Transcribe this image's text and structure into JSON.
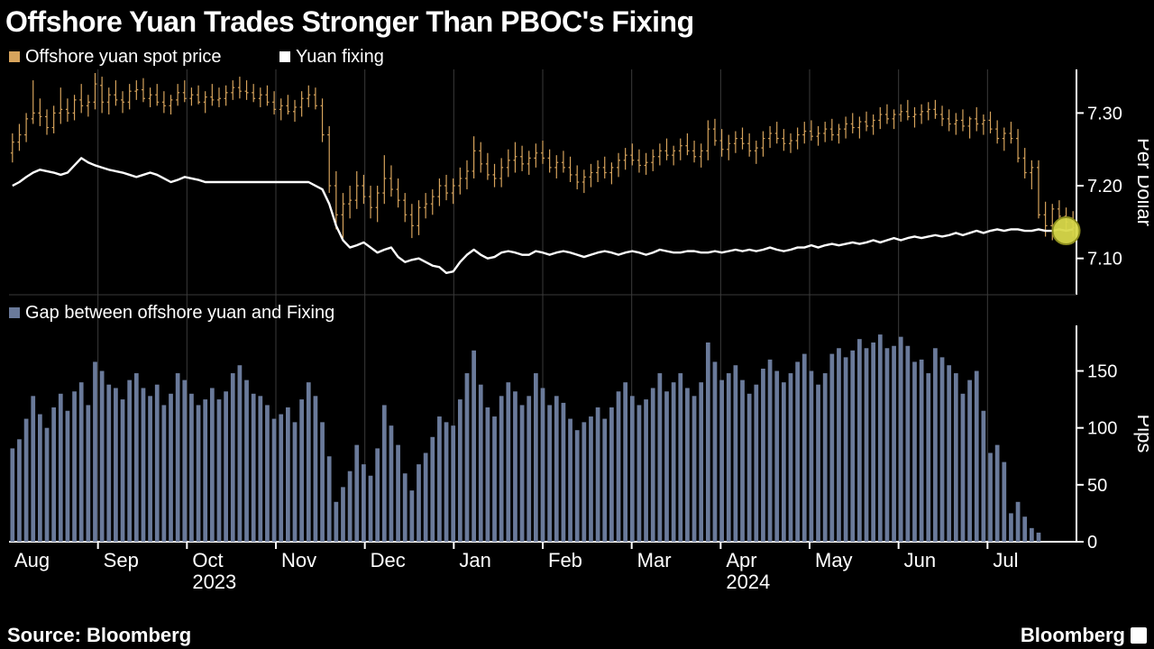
{
  "title": "Offshore Yuan Trades Stronger Than PBOC's Fixing",
  "source_label": "Source: Bloomberg",
  "brand": "Bloomberg",
  "colors": {
    "background": "#000000",
    "text": "#ffffff",
    "ohlc": "#d6a35c",
    "fixing_line": "#ffffff",
    "bars": "#6a7a9a",
    "grid": "#3a3a3a",
    "axis": "#ffffff",
    "panel_fill": "#050505",
    "highlight_marker_fill": "#d8d84a",
    "highlight_marker_stroke": "#8c8c1f"
  },
  "legend_top": [
    {
      "label": "Offshore yuan spot price",
      "swatch": "#d6a35c"
    },
    {
      "label": "Yuan fixing",
      "swatch": "#ffffff"
    }
  ],
  "legend_bottom": [
    {
      "label": "Gap between offshore yuan and Fixing",
      "swatch": "#6a7a9a"
    }
  ],
  "x_axis": {
    "months": [
      "Aug",
      "Sep",
      "Oct",
      "Nov",
      "Dec",
      "Jan",
      "Feb",
      "Mar",
      "Apr",
      "May",
      "Jun",
      "Jul"
    ],
    "year_under": {
      "2023": "Oct",
      "2024": "Apr"
    }
  },
  "top_panel": {
    "type": "ohlc+line",
    "ylabel": "Per Dollar",
    "ylim": [
      7.05,
      7.36
    ],
    "yticks": [
      7.1,
      7.2,
      7.3
    ],
    "label_fontsize": 20,
    "ohlc": [
      {
        "o": 7.245,
        "h": 7.272,
        "l": 7.232,
        "c": 7.26
      },
      {
        "o": 7.26,
        "h": 7.285,
        "l": 7.248,
        "c": 7.27
      },
      {
        "o": 7.27,
        "h": 7.3,
        "l": 7.26,
        "c": 7.292
      },
      {
        "o": 7.292,
        "h": 7.345,
        "l": 7.285,
        "c": 7.3
      },
      {
        "o": 7.3,
        "h": 7.32,
        "l": 7.282,
        "c": 7.295
      },
      {
        "o": 7.295,
        "h": 7.305,
        "l": 7.27,
        "c": 7.28
      },
      {
        "o": 7.28,
        "h": 7.31,
        "l": 7.272,
        "c": 7.3
      },
      {
        "o": 7.3,
        "h": 7.335,
        "l": 7.285,
        "c": 7.305
      },
      {
        "o": 7.305,
        "h": 7.32,
        "l": 7.288,
        "c": 7.3
      },
      {
        "o": 7.3,
        "h": 7.325,
        "l": 7.29,
        "c": 7.318
      },
      {
        "o": 7.318,
        "h": 7.34,
        "l": 7.3,
        "c": 7.31
      },
      {
        "o": 7.31,
        "h": 7.325,
        "l": 7.295,
        "c": 7.315
      },
      {
        "o": 7.315,
        "h": 7.355,
        "l": 7.305,
        "c": 7.34
      },
      {
        "o": 7.338,
        "h": 7.35,
        "l": 7.3,
        "c": 7.315
      },
      {
        "o": 7.315,
        "h": 7.335,
        "l": 7.298,
        "c": 7.325
      },
      {
        "o": 7.325,
        "h": 7.345,
        "l": 7.31,
        "c": 7.318
      },
      {
        "o": 7.318,
        "h": 7.33,
        "l": 7.3,
        "c": 7.315
      },
      {
        "o": 7.315,
        "h": 7.34,
        "l": 7.305,
        "c": 7.33
      },
      {
        "o": 7.33,
        "h": 7.345,
        "l": 7.318,
        "c": 7.332
      },
      {
        "o": 7.332,
        "h": 7.348,
        "l": 7.315,
        "c": 7.32
      },
      {
        "o": 7.32,
        "h": 7.335,
        "l": 7.308,
        "c": 7.325
      },
      {
        "o": 7.325,
        "h": 7.34,
        "l": 7.31,
        "c": 7.315
      },
      {
        "o": 7.315,
        "h": 7.33,
        "l": 7.3,
        "c": 7.31
      },
      {
        "o": 7.31,
        "h": 7.325,
        "l": 7.298,
        "c": 7.318
      },
      {
        "o": 7.318,
        "h": 7.34,
        "l": 7.31,
        "c": 7.328
      },
      {
        "o": 7.328,
        "h": 7.345,
        "l": 7.315,
        "c": 7.32
      },
      {
        "o": 7.32,
        "h": 7.335,
        "l": 7.31,
        "c": 7.325
      },
      {
        "o": 7.325,
        "h": 7.338,
        "l": 7.312,
        "c": 7.315
      },
      {
        "o": 7.315,
        "h": 7.33,
        "l": 7.3,
        "c": 7.322
      },
      {
        "o": 7.322,
        "h": 7.34,
        "l": 7.31,
        "c": 7.318
      },
      {
        "o": 7.318,
        "h": 7.335,
        "l": 7.308,
        "c": 7.32
      },
      {
        "o": 7.32,
        "h": 7.338,
        "l": 7.31,
        "c": 7.328
      },
      {
        "o": 7.328,
        "h": 7.345,
        "l": 7.318,
        "c": 7.335
      },
      {
        "o": 7.335,
        "h": 7.35,
        "l": 7.32,
        "c": 7.33
      },
      {
        "o": 7.33,
        "h": 7.345,
        "l": 7.318,
        "c": 7.328
      },
      {
        "o": 7.328,
        "h": 7.34,
        "l": 7.315,
        "c": 7.32
      },
      {
        "o": 7.32,
        "h": 7.335,
        "l": 7.308,
        "c": 7.325
      },
      {
        "o": 7.325,
        "h": 7.338,
        "l": 7.31,
        "c": 7.315
      },
      {
        "o": 7.315,
        "h": 7.33,
        "l": 7.298,
        "c": 7.305
      },
      {
        "o": 7.305,
        "h": 7.32,
        "l": 7.29,
        "c": 7.31
      },
      {
        "o": 7.31,
        "h": 7.325,
        "l": 7.298,
        "c": 7.302
      },
      {
        "o": 7.302,
        "h": 7.318,
        "l": 7.288,
        "c": 7.308
      },
      {
        "o": 7.308,
        "h": 7.33,
        "l": 7.295,
        "c": 7.32
      },
      {
        "o": 7.32,
        "h": 7.338,
        "l": 7.308,
        "c": 7.325
      },
      {
        "o": 7.325,
        "h": 7.335,
        "l": 7.305,
        "c": 7.31
      },
      {
        "o": 7.31,
        "h": 7.32,
        "l": 7.26,
        "c": 7.27
      },
      {
        "o": 7.27,
        "h": 7.282,
        "l": 7.19,
        "c": 7.2
      },
      {
        "o": 7.2,
        "h": 7.22,
        "l": 7.14,
        "c": 7.16
      },
      {
        "o": 7.16,
        "h": 7.19,
        "l": 7.128,
        "c": 7.175
      },
      {
        "o": 7.175,
        "h": 7.2,
        "l": 7.155,
        "c": 7.18
      },
      {
        "o": 7.18,
        "h": 7.22,
        "l": 7.168,
        "c": 7.2
      },
      {
        "o": 7.2,
        "h": 7.215,
        "l": 7.175,
        "c": 7.185
      },
      {
        "o": 7.185,
        "h": 7.2,
        "l": 7.155,
        "c": 7.17
      },
      {
        "o": 7.17,
        "h": 7.2,
        "l": 7.15,
        "c": 7.19
      },
      {
        "o": 7.19,
        "h": 7.242,
        "l": 7.175,
        "c": 7.21
      },
      {
        "o": 7.21,
        "h": 7.228,
        "l": 7.185,
        "c": 7.195
      },
      {
        "o": 7.195,
        "h": 7.21,
        "l": 7.17,
        "c": 7.18
      },
      {
        "o": 7.18,
        "h": 7.19,
        "l": 7.15,
        "c": 7.16
      },
      {
        "o": 7.16,
        "h": 7.175,
        "l": 7.128,
        "c": 7.145
      },
      {
        "o": 7.145,
        "h": 7.18,
        "l": 7.132,
        "c": 7.17
      },
      {
        "o": 7.17,
        "h": 7.19,
        "l": 7.155,
        "c": 7.175
      },
      {
        "o": 7.175,
        "h": 7.195,
        "l": 7.16,
        "c": 7.185
      },
      {
        "o": 7.185,
        "h": 7.21,
        "l": 7.172,
        "c": 7.2
      },
      {
        "o": 7.2,
        "h": 7.215,
        "l": 7.18,
        "c": 7.19
      },
      {
        "o": 7.19,
        "h": 7.21,
        "l": 7.175,
        "c": 7.2
      },
      {
        "o": 7.2,
        "h": 7.225,
        "l": 7.188,
        "c": 7.21
      },
      {
        "o": 7.21,
        "h": 7.235,
        "l": 7.195,
        "c": 7.22
      },
      {
        "o": 7.22,
        "h": 7.268,
        "l": 7.21,
        "c": 7.248
      },
      {
        "o": 7.248,
        "h": 7.26,
        "l": 7.218,
        "c": 7.23
      },
      {
        "o": 7.23,
        "h": 7.245,
        "l": 7.208,
        "c": 7.215
      },
      {
        "o": 7.215,
        "h": 7.23,
        "l": 7.198,
        "c": 7.21
      },
      {
        "o": 7.21,
        "h": 7.238,
        "l": 7.198,
        "c": 7.225
      },
      {
        "o": 7.225,
        "h": 7.25,
        "l": 7.212,
        "c": 7.235
      },
      {
        "o": 7.235,
        "h": 7.26,
        "l": 7.218,
        "c": 7.24
      },
      {
        "o": 7.24,
        "h": 7.255,
        "l": 7.22,
        "c": 7.23
      },
      {
        "o": 7.23,
        "h": 7.248,
        "l": 7.215,
        "c": 7.238
      },
      {
        "o": 7.238,
        "h": 7.258,
        "l": 7.225,
        "c": 7.245
      },
      {
        "o": 7.245,
        "h": 7.262,
        "l": 7.23,
        "c": 7.238
      },
      {
        "o": 7.238,
        "h": 7.25,
        "l": 7.218,
        "c": 7.225
      },
      {
        "o": 7.225,
        "h": 7.242,
        "l": 7.21,
        "c": 7.232
      },
      {
        "o": 7.232,
        "h": 7.248,
        "l": 7.218,
        "c": 7.225
      },
      {
        "o": 7.225,
        "h": 7.24,
        "l": 7.205,
        "c": 7.215
      },
      {
        "o": 7.215,
        "h": 7.228,
        "l": 7.195,
        "c": 7.205
      },
      {
        "o": 7.205,
        "h": 7.222,
        "l": 7.19,
        "c": 7.212
      },
      {
        "o": 7.212,
        "h": 7.23,
        "l": 7.198,
        "c": 7.218
      },
      {
        "o": 7.218,
        "h": 7.235,
        "l": 7.205,
        "c": 7.225
      },
      {
        "o": 7.225,
        "h": 7.24,
        "l": 7.21,
        "c": 7.218
      },
      {
        "o": 7.218,
        "h": 7.232,
        "l": 7.202,
        "c": 7.225
      },
      {
        "o": 7.225,
        "h": 7.245,
        "l": 7.212,
        "c": 7.235
      },
      {
        "o": 7.235,
        "h": 7.252,
        "l": 7.222,
        "c": 7.242
      },
      {
        "o": 7.242,
        "h": 7.258,
        "l": 7.228,
        "c": 7.235
      },
      {
        "o": 7.235,
        "h": 7.25,
        "l": 7.218,
        "c": 7.228
      },
      {
        "o": 7.228,
        "h": 7.245,
        "l": 7.215,
        "c": 7.232
      },
      {
        "o": 7.232,
        "h": 7.25,
        "l": 7.22,
        "c": 7.24
      },
      {
        "o": 7.24,
        "h": 7.258,
        "l": 7.228,
        "c": 7.248
      },
      {
        "o": 7.248,
        "h": 7.265,
        "l": 7.235,
        "c": 7.242
      },
      {
        "o": 7.242,
        "h": 7.255,
        "l": 7.228,
        "c": 7.248
      },
      {
        "o": 7.248,
        "h": 7.265,
        "l": 7.235,
        "c": 7.255
      },
      {
        "o": 7.255,
        "h": 7.272,
        "l": 7.242,
        "c": 7.248
      },
      {
        "o": 7.248,
        "h": 7.262,
        "l": 7.232,
        "c": 7.24
      },
      {
        "o": 7.24,
        "h": 7.258,
        "l": 7.225,
        "c": 7.248
      },
      {
        "o": 7.248,
        "h": 7.29,
        "l": 7.235,
        "c": 7.278
      },
      {
        "o": 7.278,
        "h": 7.292,
        "l": 7.255,
        "c": 7.262
      },
      {
        "o": 7.262,
        "h": 7.278,
        "l": 7.24,
        "c": 7.25
      },
      {
        "o": 7.25,
        "h": 7.27,
        "l": 7.235,
        "c": 7.258
      },
      {
        "o": 7.258,
        "h": 7.275,
        "l": 7.245,
        "c": 7.265
      },
      {
        "o": 7.265,
        "h": 7.28,
        "l": 7.25,
        "c": 7.258
      },
      {
        "o": 7.258,
        "h": 7.272,
        "l": 7.24,
        "c": 7.248
      },
      {
        "o": 7.248,
        "h": 7.262,
        "l": 7.23,
        "c": 7.252
      },
      {
        "o": 7.252,
        "h": 7.275,
        "l": 7.24,
        "c": 7.265
      },
      {
        "o": 7.265,
        "h": 7.282,
        "l": 7.252,
        "c": 7.272
      },
      {
        "o": 7.272,
        "h": 7.288,
        "l": 7.258,
        "c": 7.265
      },
      {
        "o": 7.265,
        "h": 7.278,
        "l": 7.248,
        "c": 7.258
      },
      {
        "o": 7.258,
        "h": 7.272,
        "l": 7.245,
        "c": 7.262
      },
      {
        "o": 7.262,
        "h": 7.28,
        "l": 7.25,
        "c": 7.27
      },
      {
        "o": 7.27,
        "h": 7.288,
        "l": 7.258,
        "c": 7.275
      },
      {
        "o": 7.275,
        "h": 7.29,
        "l": 7.262,
        "c": 7.268
      },
      {
        "o": 7.268,
        "h": 7.282,
        "l": 7.255,
        "c": 7.272
      },
      {
        "o": 7.272,
        "h": 7.288,
        "l": 7.26,
        "c": 7.278
      },
      {
        "o": 7.278,
        "h": 7.292,
        "l": 7.262,
        "c": 7.27
      },
      {
        "o": 7.27,
        "h": 7.285,
        "l": 7.258,
        "c": 7.278
      },
      {
        "o": 7.278,
        "h": 7.295,
        "l": 7.265,
        "c": 7.285
      },
      {
        "o": 7.285,
        "h": 7.3,
        "l": 7.272,
        "c": 7.28
      },
      {
        "o": 7.28,
        "h": 7.295,
        "l": 7.265,
        "c": 7.288
      },
      {
        "o": 7.288,
        "h": 7.302,
        "l": 7.275,
        "c": 7.282
      },
      {
        "o": 7.282,
        "h": 7.298,
        "l": 7.27,
        "c": 7.29
      },
      {
        "o": 7.29,
        "h": 7.308,
        "l": 7.278,
        "c": 7.298
      },
      {
        "o": 7.298,
        "h": 7.312,
        "l": 7.285,
        "c": 7.292
      },
      {
        "o": 7.292,
        "h": 7.305,
        "l": 7.278,
        "c": 7.298
      },
      {
        "o": 7.298,
        "h": 7.312,
        "l": 7.288,
        "c": 7.302
      },
      {
        "o": 7.302,
        "h": 7.318,
        "l": 7.29,
        "c": 7.295
      },
      {
        "o": 7.295,
        "h": 7.308,
        "l": 7.28,
        "c": 7.298
      },
      {
        "o": 7.298,
        "h": 7.312,
        "l": 7.285,
        "c": 7.302
      },
      {
        "o": 7.302,
        "h": 7.315,
        "l": 7.29,
        "c": 7.305
      },
      {
        "o": 7.305,
        "h": 7.318,
        "l": 7.292,
        "c": 7.298
      },
      {
        "o": 7.298,
        "h": 7.31,
        "l": 7.282,
        "c": 7.292
      },
      {
        "o": 7.292,
        "h": 7.305,
        "l": 7.275,
        "c": 7.285
      },
      {
        "o": 7.285,
        "h": 7.3,
        "l": 7.27,
        "c": 7.29
      },
      {
        "o": 7.29,
        "h": 7.305,
        "l": 7.275,
        "c": 7.282
      },
      {
        "o": 7.282,
        "h": 7.295,
        "l": 7.265,
        "c": 7.292
      },
      {
        "o": 7.292,
        "h": 7.308,
        "l": 7.275,
        "c": 7.285
      },
      {
        "o": 7.285,
        "h": 7.298,
        "l": 7.27,
        "c": 7.29
      },
      {
        "o": 7.29,
        "h": 7.302,
        "l": 7.272,
        "c": 7.278
      },
      {
        "o": 7.278,
        "h": 7.29,
        "l": 7.258,
        "c": 7.265
      },
      {
        "o": 7.265,
        "h": 7.28,
        "l": 7.248,
        "c": 7.272
      },
      {
        "o": 7.272,
        "h": 7.288,
        "l": 7.258,
        "c": 7.265
      },
      {
        "o": 7.265,
        "h": 7.278,
        "l": 7.232,
        "c": 7.238
      },
      {
        "o": 7.238,
        "h": 7.252,
        "l": 7.21,
        "c": 7.218
      },
      {
        "o": 7.218,
        "h": 7.235,
        "l": 7.195,
        "c": 7.225
      },
      {
        "o": 7.225,
        "h": 7.235,
        "l": 7.155,
        "c": 7.16
      },
      {
        "o": 7.16,
        "h": 7.178,
        "l": 7.13,
        "c": 7.145
      },
      {
        "o": 7.145,
        "h": 7.175,
        "l": 7.125,
        "c": 7.168
      },
      {
        "o": 7.168,
        "h": 7.18,
        "l": 7.148,
        "c": 7.158
      },
      {
        "o": 7.158,
        "h": 7.17,
        "l": 7.138,
        "c": 7.15
      },
      {
        "o": 7.15,
        "h": 7.165,
        "l": 7.13,
        "c": 7.142
      }
    ],
    "fixing_line": [
      7.2,
      7.205,
      7.212,
      7.218,
      7.222,
      7.22,
      7.218,
      7.215,
      7.218,
      7.228,
      7.238,
      7.232,
      7.228,
      7.225,
      7.222,
      7.22,
      7.218,
      7.215,
      7.212,
      7.215,
      7.218,
      7.215,
      7.21,
      7.205,
      7.208,
      7.212,
      7.21,
      7.208,
      7.205,
      7.205,
      7.205,
      7.205,
      7.205,
      7.205,
      7.205,
      7.205,
      7.205,
      7.205,
      7.205,
      7.205,
      7.205,
      7.205,
      7.205,
      7.205,
      7.2,
      7.195,
      7.175,
      7.145,
      7.125,
      7.115,
      7.118,
      7.122,
      7.115,
      7.108,
      7.112,
      7.115,
      7.102,
      7.095,
      7.098,
      7.1,
      7.095,
      7.09,
      7.088,
      7.08,
      7.082,
      7.095,
      7.105,
      7.112,
      7.105,
      7.1,
      7.102,
      7.108,
      7.11,
      7.108,
      7.105,
      7.105,
      7.11,
      7.108,
      7.105,
      7.108,
      7.11,
      7.108,
      7.105,
      7.102,
      7.105,
      7.108,
      7.11,
      7.108,
      7.105,
      7.108,
      7.11,
      7.108,
      7.105,
      7.108,
      7.112,
      7.11,
      7.108,
      7.108,
      7.11,
      7.11,
      7.108,
      7.108,
      7.11,
      7.108,
      7.11,
      7.112,
      7.11,
      7.112,
      7.11,
      7.112,
      7.115,
      7.112,
      7.11,
      7.112,
      7.115,
      7.115,
      7.118,
      7.115,
      7.118,
      7.12,
      7.118,
      7.12,
      7.122,
      7.12,
      7.122,
      7.125,
      7.122,
      7.125,
      7.128,
      7.125,
      7.128,
      7.13,
      7.128,
      7.13,
      7.132,
      7.13,
      7.132,
      7.135,
      7.132,
      7.135,
      7.138,
      7.135,
      7.138,
      7.14,
      7.138,
      7.14,
      7.14,
      7.138,
      7.138,
      7.14,
      7.138,
      7.138,
      7.14,
      7.138,
      7.14
    ],
    "highlight_marker": {
      "index": 153,
      "radius": 15
    }
  },
  "bottom_panel": {
    "type": "bar",
    "ylabel": "Pips",
    "ylim": [
      0,
      190
    ],
    "yticks": [
      0,
      50,
      100,
      150
    ],
    "label_fontsize": 20,
    "bars": [
      82,
      90,
      108,
      128,
      112,
      100,
      118,
      130,
      115,
      132,
      140,
      120,
      158,
      150,
      138,
      135,
      125,
      142,
      148,
      135,
      128,
      138,
      120,
      130,
      148,
      142,
      130,
      120,
      125,
      135,
      125,
      132,
      148,
      155,
      142,
      130,
      128,
      120,
      108,
      112,
      118,
      105,
      125,
      140,
      128,
      105,
      75,
      35,
      48,
      62,
      85,
      68,
      58,
      82,
      120,
      102,
      85,
      60,
      45,
      68,
      78,
      92,
      110,
      105,
      102,
      125,
      148,
      168,
      138,
      118,
      110,
      128,
      140,
      132,
      120,
      128,
      148,
      135,
      120,
      128,
      122,
      108,
      98,
      105,
      110,
      118,
      108,
      118,
      132,
      140,
      128,
      120,
      125,
      135,
      148,
      132,
      140,
      148,
      135,
      128,
      140,
      175,
      158,
      142,
      148,
      155,
      142,
      130,
      138,
      152,
      160,
      150,
      140,
      148,
      158,
      165,
      150,
      138,
      148,
      165,
      170,
      162,
      168,
      178,
      170,
      175,
      182,
      170,
      172,
      180,
      172,
      158,
      160,
      148,
      170,
      162,
      155,
      148,
      130,
      142,
      150,
      115,
      78,
      85,
      70,
      25,
      35,
      22,
      12,
      8
    ]
  }
}
